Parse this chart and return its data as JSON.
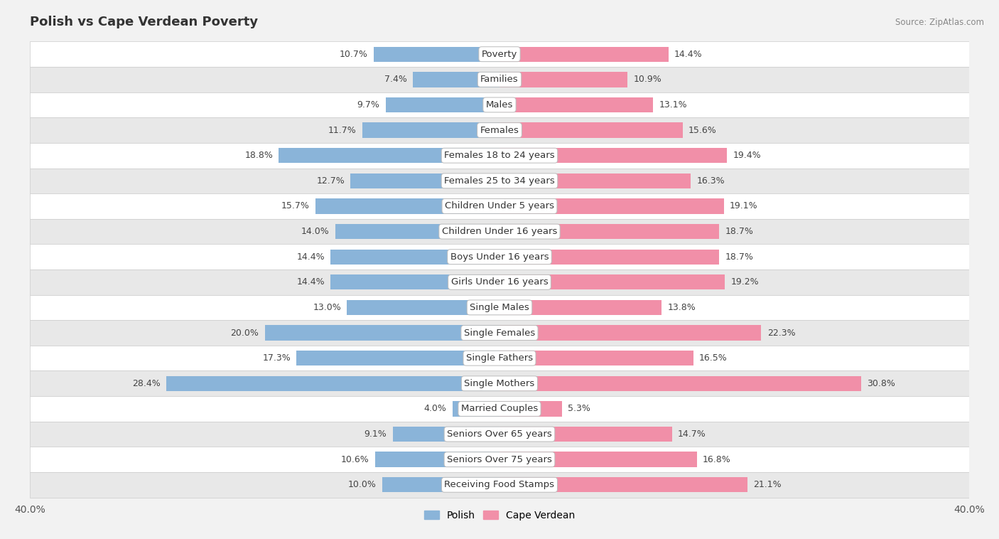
{
  "title": "Polish vs Cape Verdean Poverty",
  "source": "Source: ZipAtlas.com",
  "categories": [
    "Poverty",
    "Families",
    "Males",
    "Females",
    "Females 18 to 24 years",
    "Females 25 to 34 years",
    "Children Under 5 years",
    "Children Under 16 years",
    "Boys Under 16 years",
    "Girls Under 16 years",
    "Single Males",
    "Single Females",
    "Single Fathers",
    "Single Mothers",
    "Married Couples",
    "Seniors Over 65 years",
    "Seniors Over 75 years",
    "Receiving Food Stamps"
  ],
  "polish_values": [
    10.7,
    7.4,
    9.7,
    11.7,
    18.8,
    12.7,
    15.7,
    14.0,
    14.4,
    14.4,
    13.0,
    20.0,
    17.3,
    28.4,
    4.0,
    9.1,
    10.6,
    10.0
  ],
  "capeverdean_values": [
    14.4,
    10.9,
    13.1,
    15.6,
    19.4,
    16.3,
    19.1,
    18.7,
    18.7,
    19.2,
    13.8,
    22.3,
    16.5,
    30.8,
    5.3,
    14.7,
    16.8,
    21.1
  ],
  "polish_color": "#8ab4d9",
  "capeverdean_color": "#f18fa8",
  "bar_height": 0.6,
  "xlim": 40.0,
  "bg_color": "#f2f2f2",
  "row_bg_light": "#ffffff",
  "row_bg_dark": "#e8e8e8",
  "label_fontsize": 9.5,
  "value_fontsize": 9,
  "title_fontsize": 13
}
